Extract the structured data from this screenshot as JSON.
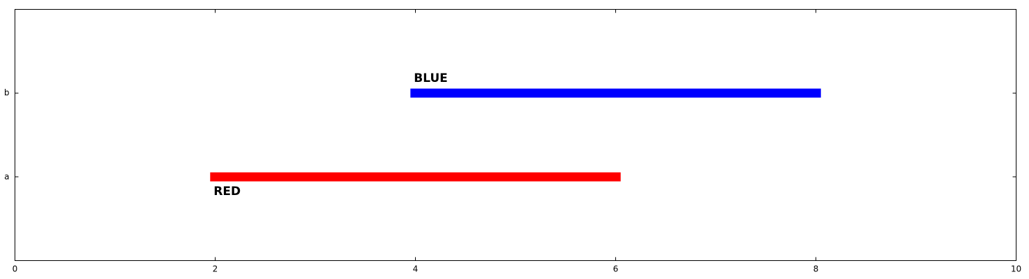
{
  "chart_data": {
    "type": "line",
    "title": "",
    "xlabel": "",
    "ylabel": "",
    "xlim": [
      0,
      10
    ],
    "x_ticks": [
      0,
      2,
      4,
      6,
      8,
      10
    ],
    "y_categories": [
      "a",
      "b"
    ],
    "grid": false,
    "segments": [
      {
        "label": "RED",
        "category": "a",
        "x_start": 1.95,
        "x_end": 6.05,
        "color": "#ff0000",
        "label_position": "below"
      },
      {
        "label": "BLUE",
        "category": "b",
        "x_start": 3.95,
        "x_end": 8.05,
        "color": "#0000ff",
        "label_position": "above"
      }
    ]
  }
}
